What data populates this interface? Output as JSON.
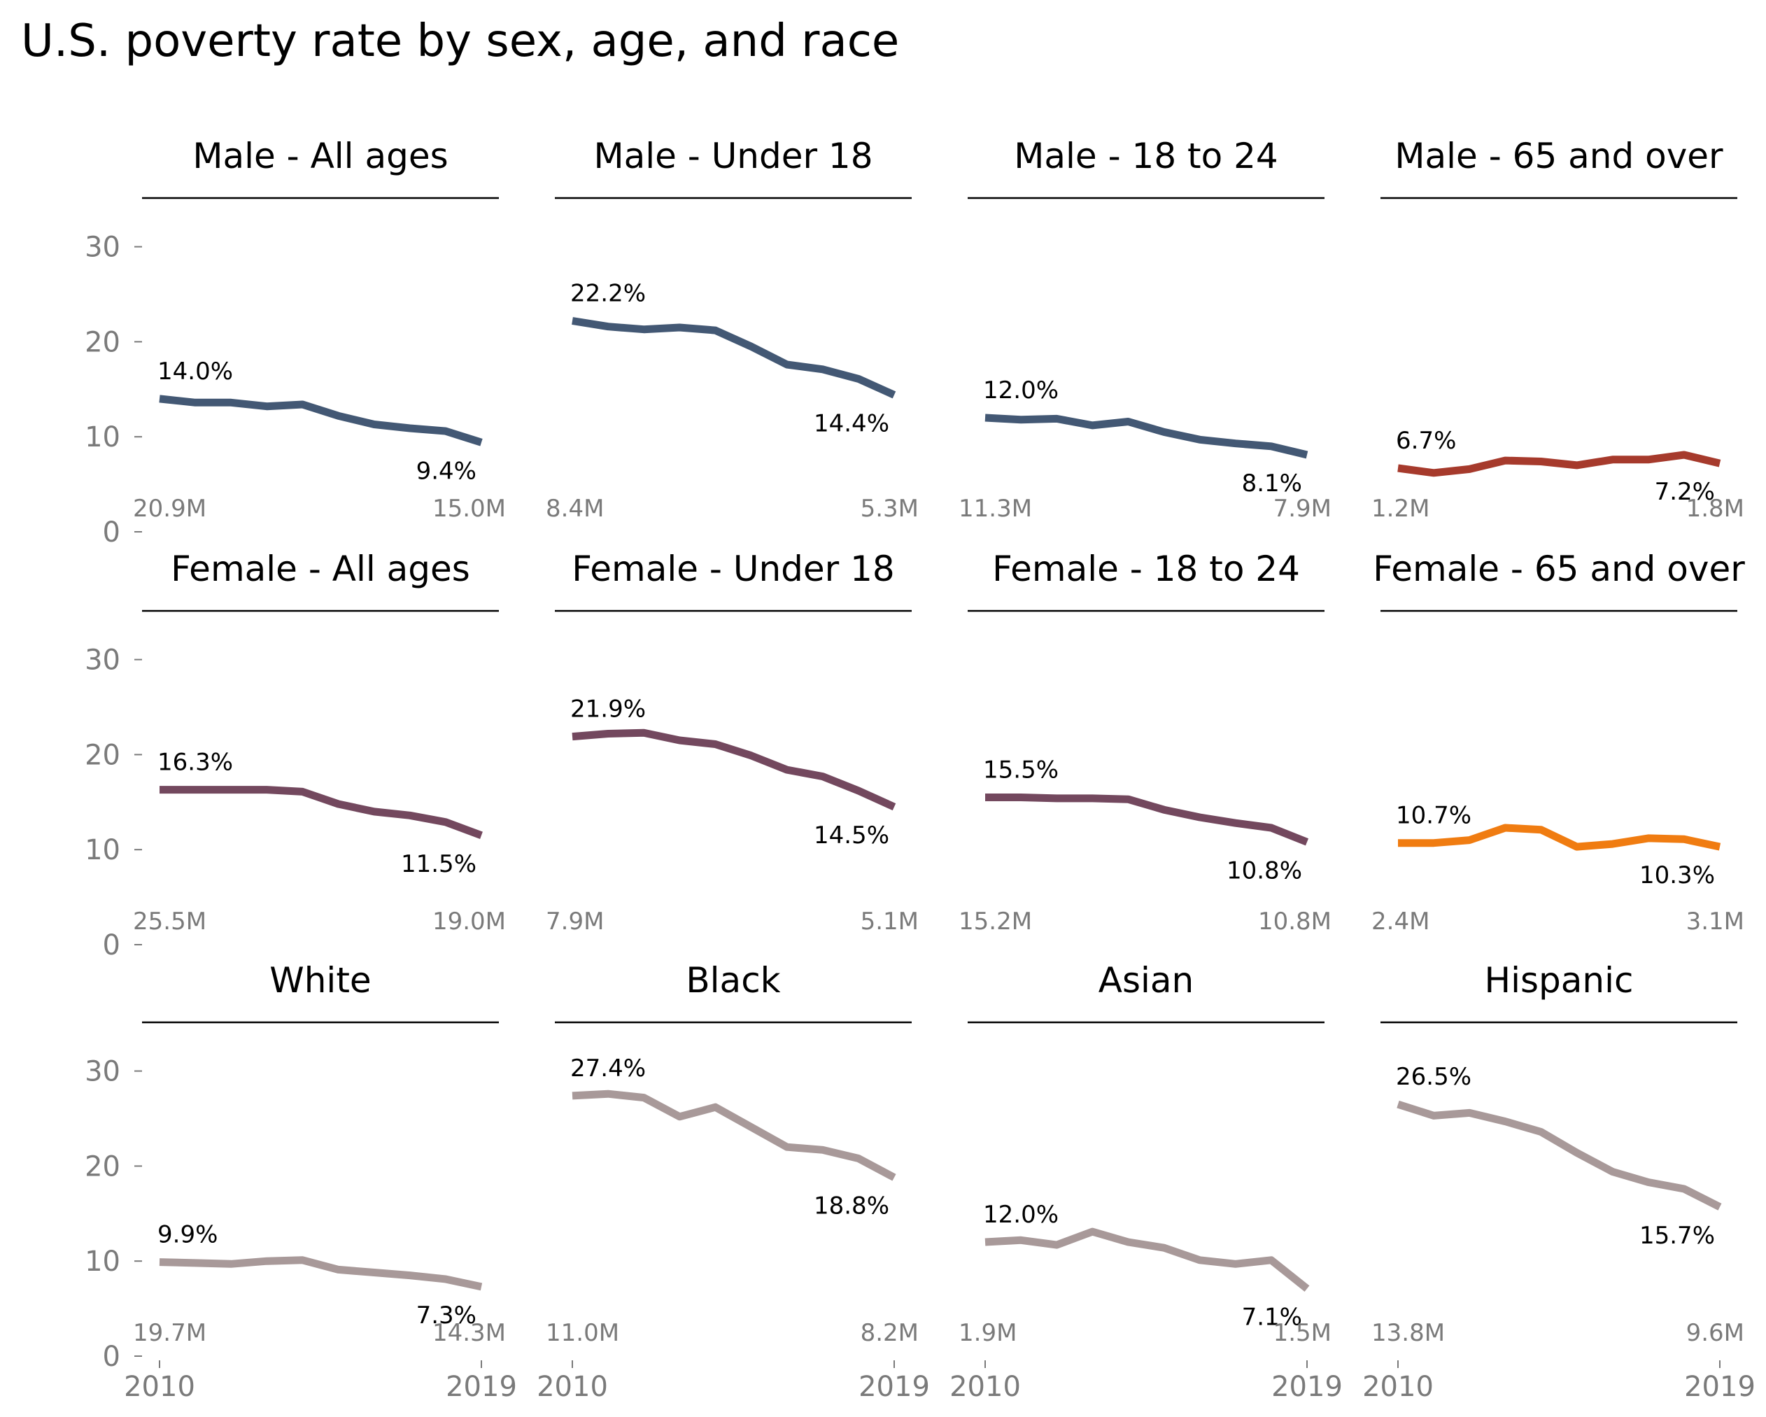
{
  "chart_data": {
    "type": "line",
    "title": "U.S. poverty rate by sex, age, and race",
    "x": [
      2010,
      2011,
      2012,
      2013,
      2014,
      2015,
      2016,
      2017,
      2018,
      2019
    ],
    "x_tick_labels": [
      "2010",
      "2019"
    ],
    "ylim": [
      0,
      35
    ],
    "y_ticks": [
      0,
      10,
      20,
      30
    ],
    "grid": false,
    "panels": [
      {
        "title": "Male - All ages",
        "color": "#435874",
        "values": [
          14.0,
          13.6,
          13.6,
          13.2,
          13.4,
          12.2,
          11.3,
          10.9,
          10.6,
          9.4
        ],
        "first_label": "14.0%",
        "last_label": "9.4%",
        "first_count": "20.9M",
        "last_count": "15.0M"
      },
      {
        "title": "Male - Under 18",
        "color": "#435874",
        "values": [
          22.2,
          21.6,
          21.3,
          21.5,
          21.2,
          19.5,
          17.6,
          17.1,
          16.1,
          14.4
        ],
        "first_label": "22.2%",
        "last_label": "14.4%",
        "first_count": "8.4M",
        "last_count": "5.3M"
      },
      {
        "title": "Male - 18 to 24",
        "color": "#435874",
        "values": [
          12.0,
          11.8,
          11.9,
          11.2,
          11.6,
          10.5,
          9.7,
          9.3,
          9.0,
          8.1
        ],
        "first_label": "12.0%",
        "last_label": "8.1%",
        "first_count": "11.3M",
        "last_count": "7.9M"
      },
      {
        "title": "Male - 65 and over",
        "color": "#a63a2c",
        "values": [
          6.7,
          6.2,
          6.6,
          7.5,
          7.4,
          7.0,
          7.6,
          7.6,
          8.1,
          7.2
        ],
        "first_label": "6.7%",
        "last_label": "7.2%",
        "first_count": "1.2M",
        "last_count": "1.8M"
      },
      {
        "title": "Female - All ages",
        "color": "#73485e",
        "values": [
          16.3,
          16.3,
          16.3,
          16.3,
          16.1,
          14.8,
          14.0,
          13.6,
          12.9,
          11.5
        ],
        "first_label": "16.3%",
        "last_label": "11.5%",
        "first_count": "25.5M",
        "last_count": "19.0M"
      },
      {
        "title": "Female - Under 18",
        "color": "#73485e",
        "values": [
          21.9,
          22.2,
          22.3,
          21.5,
          21.1,
          19.9,
          18.4,
          17.7,
          16.2,
          14.5
        ],
        "first_label": "21.9%",
        "last_label": "14.5%",
        "first_count": "7.9M",
        "last_count": "5.1M"
      },
      {
        "title": "Female - 18 to 24",
        "color": "#73485e",
        "values": [
          15.5,
          15.5,
          15.4,
          15.4,
          15.3,
          14.2,
          13.4,
          12.8,
          12.3,
          10.8
        ],
        "first_label": "15.5%",
        "last_label": "10.8%",
        "first_count": "15.2M",
        "last_count": "10.8M"
      },
      {
        "title": "Female - 65 and over",
        "color": "#f07c11",
        "values": [
          10.7,
          10.7,
          11.0,
          12.3,
          12.1,
          10.3,
          10.6,
          11.2,
          11.1,
          10.3
        ],
        "first_label": "10.7%",
        "last_label": "10.3%",
        "first_count": "2.4M",
        "last_count": "3.1M"
      },
      {
        "title": "White",
        "color": "#a89999",
        "values": [
          9.9,
          9.8,
          9.7,
          10.0,
          10.1,
          9.1,
          8.8,
          8.5,
          8.1,
          7.3
        ],
        "first_label": "9.9%",
        "last_label": "7.3%",
        "first_count": "19.7M",
        "last_count": "14.3M"
      },
      {
        "title": "Black",
        "color": "#a89999",
        "values": [
          27.4,
          27.6,
          27.2,
          25.2,
          26.2,
          24.1,
          22.0,
          21.7,
          20.8,
          18.8
        ],
        "first_label": "27.4%",
        "last_label": "18.8%",
        "first_count": "11.0M",
        "last_count": "8.2M"
      },
      {
        "title": "Asian",
        "color": "#a89999",
        "values": [
          12.0,
          12.2,
          11.7,
          13.1,
          12.0,
          11.4,
          10.1,
          9.7,
          10.1,
          7.1
        ],
        "first_label": "12.0%",
        "last_label": "7.1%",
        "first_count": "1.9M",
        "last_count": "1.5M"
      },
      {
        "title": "Hispanic",
        "color": "#a89999",
        "values": [
          26.5,
          25.3,
          25.6,
          24.7,
          23.6,
          21.4,
          19.4,
          18.3,
          17.6,
          15.7
        ],
        "first_label": "26.5%",
        "last_label": "15.7%",
        "first_count": "13.8M",
        "last_count": "9.6M"
      }
    ]
  }
}
